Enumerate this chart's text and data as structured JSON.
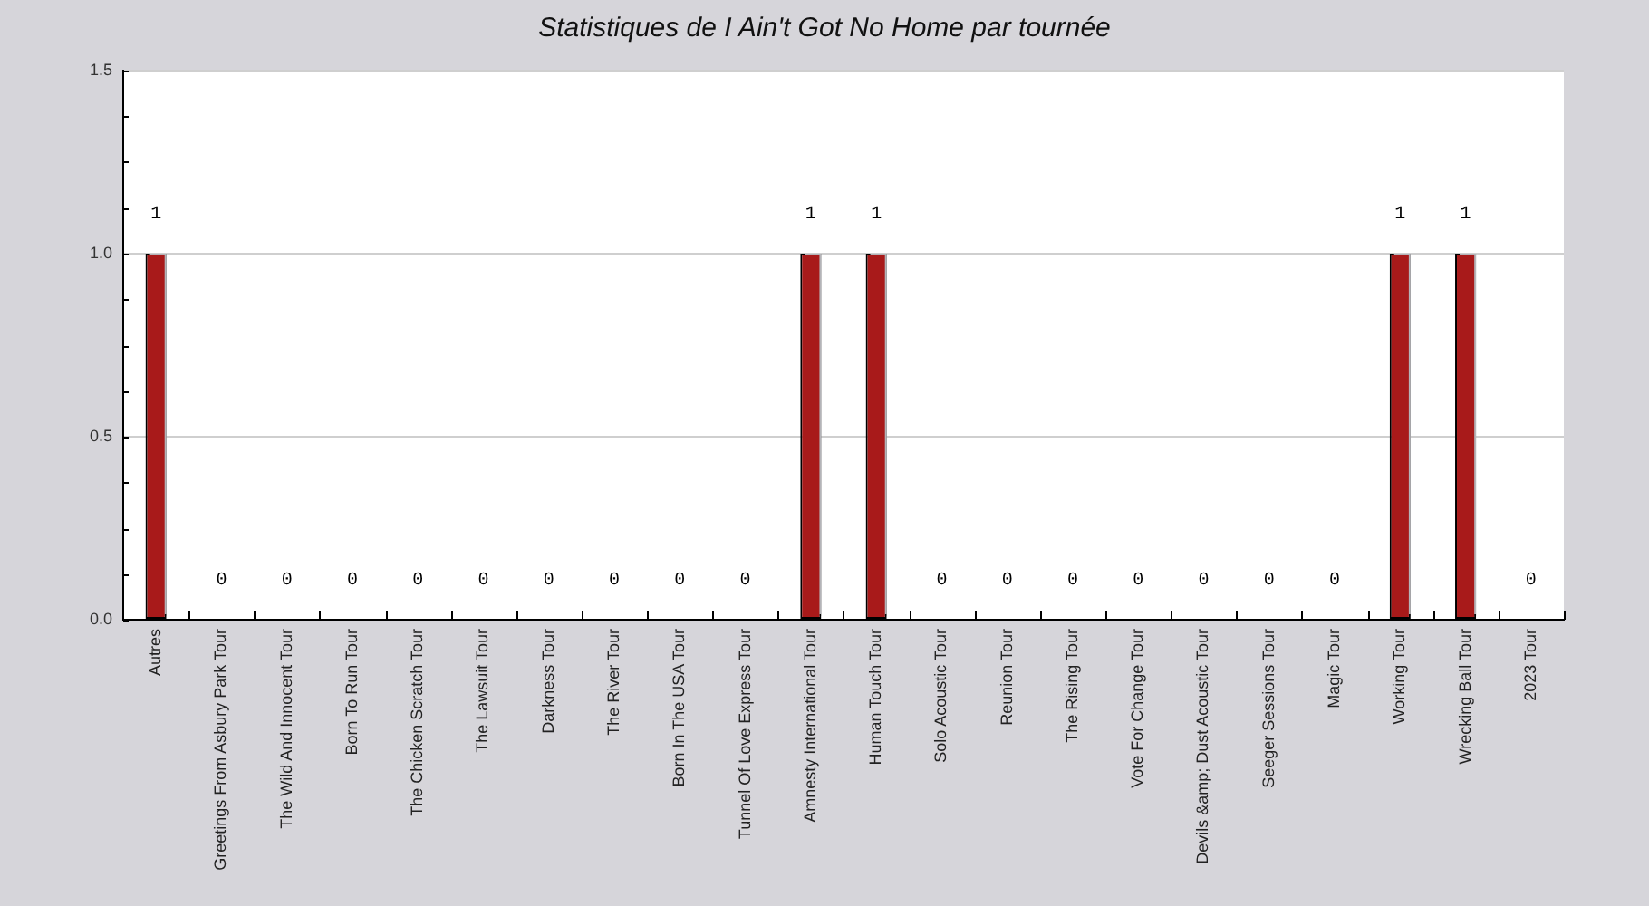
{
  "chart_data": {
    "type": "bar",
    "title": "Statistiques de I Ain't Got No Home par tournée",
    "categories": [
      "Autres",
      "Greetings From Asbury Park Tour",
      "The Wild And Innocent Tour",
      "Born To Run Tour",
      "The Chicken Scratch Tour",
      "The Lawsuit Tour",
      "Darkness Tour",
      "The River Tour",
      "Born In The USA Tour",
      "Tunnel Of Love Express Tour",
      "Amnesty International Tour",
      "Human Touch Tour",
      "Solo Acoustic Tour",
      "Reunion Tour",
      "The Rising Tour",
      "Vote For Change Tour",
      "Devils &amp; Dust Acoustic Tour",
      "Seeger Sessions Tour",
      "Magic Tour",
      "Working Tour",
      "Wrecking Ball Tour",
      "2023 Tour"
    ],
    "values": [
      1,
      0,
      0,
      0,
      0,
      0,
      0,
      0,
      0,
      0,
      1,
      1,
      0,
      0,
      0,
      0,
      0,
      0,
      0,
      1,
      1,
      0
    ],
    "color": "#a81a1a",
    "ylim": [
      0,
      1.5
    ],
    "yticks": [
      {
        "value": 0,
        "label": "0.0"
      },
      {
        "value": 0.125,
        "label": null
      },
      {
        "value": 0.25,
        "label": null
      },
      {
        "value": 0.375,
        "label": null
      },
      0.5,
      {
        "value": 0.625,
        "label": null
      },
      {
        "value": 0.75,
        "label": null
      },
      {
        "value": 0.875,
        "label": null
      },
      {
        "value": 1,
        "label": "1.0"
      },
      {
        "value": 1.125,
        "label": null
      },
      {
        "value": 1.25,
        "label": null
      },
      {
        "value": 1.375,
        "label": null
      },
      1.5
    ],
    "grid": "y",
    "data_labels": true
  }
}
